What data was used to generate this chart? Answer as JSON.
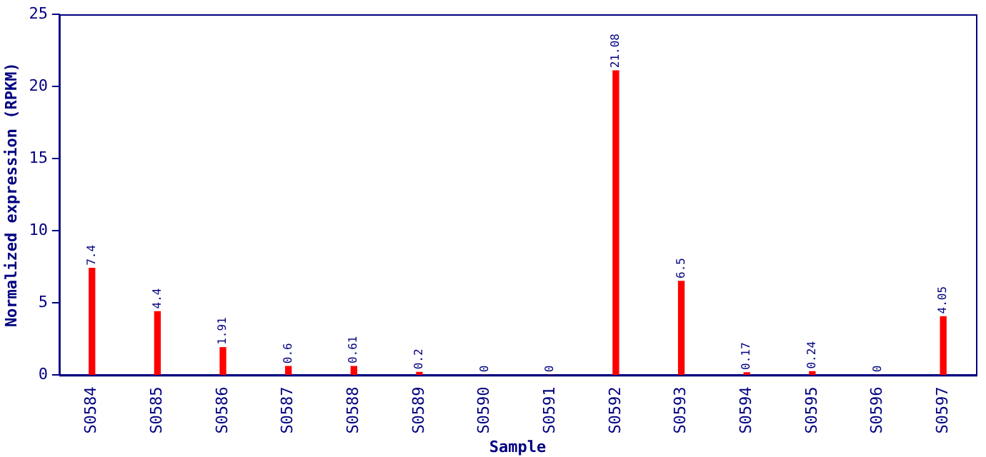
{
  "chart_data": {
    "type": "bar",
    "xlabel": "Sample",
    "ylabel": "Normalized expression (RPKM)",
    "categories": [
      "S0584",
      "S0585",
      "S0586",
      "S0587",
      "S0588",
      "S0589",
      "S0590",
      "S0591",
      "S0592",
      "S0593",
      "S0594",
      "S0595",
      "S0596",
      "S0597"
    ],
    "values": [
      7.4,
      4.4,
      1.91,
      0.6,
      0.61,
      0.2,
      0,
      0,
      21.08,
      6.5,
      0.17,
      0.24,
      0,
      4.05
    ],
    "color": "#ff0000",
    "ylim": [
      0,
      25
    ],
    "yticks": [
      0,
      5,
      10,
      15,
      20,
      25
    ],
    "grid": false,
    "legend": false,
    "data_labels": true
  }
}
